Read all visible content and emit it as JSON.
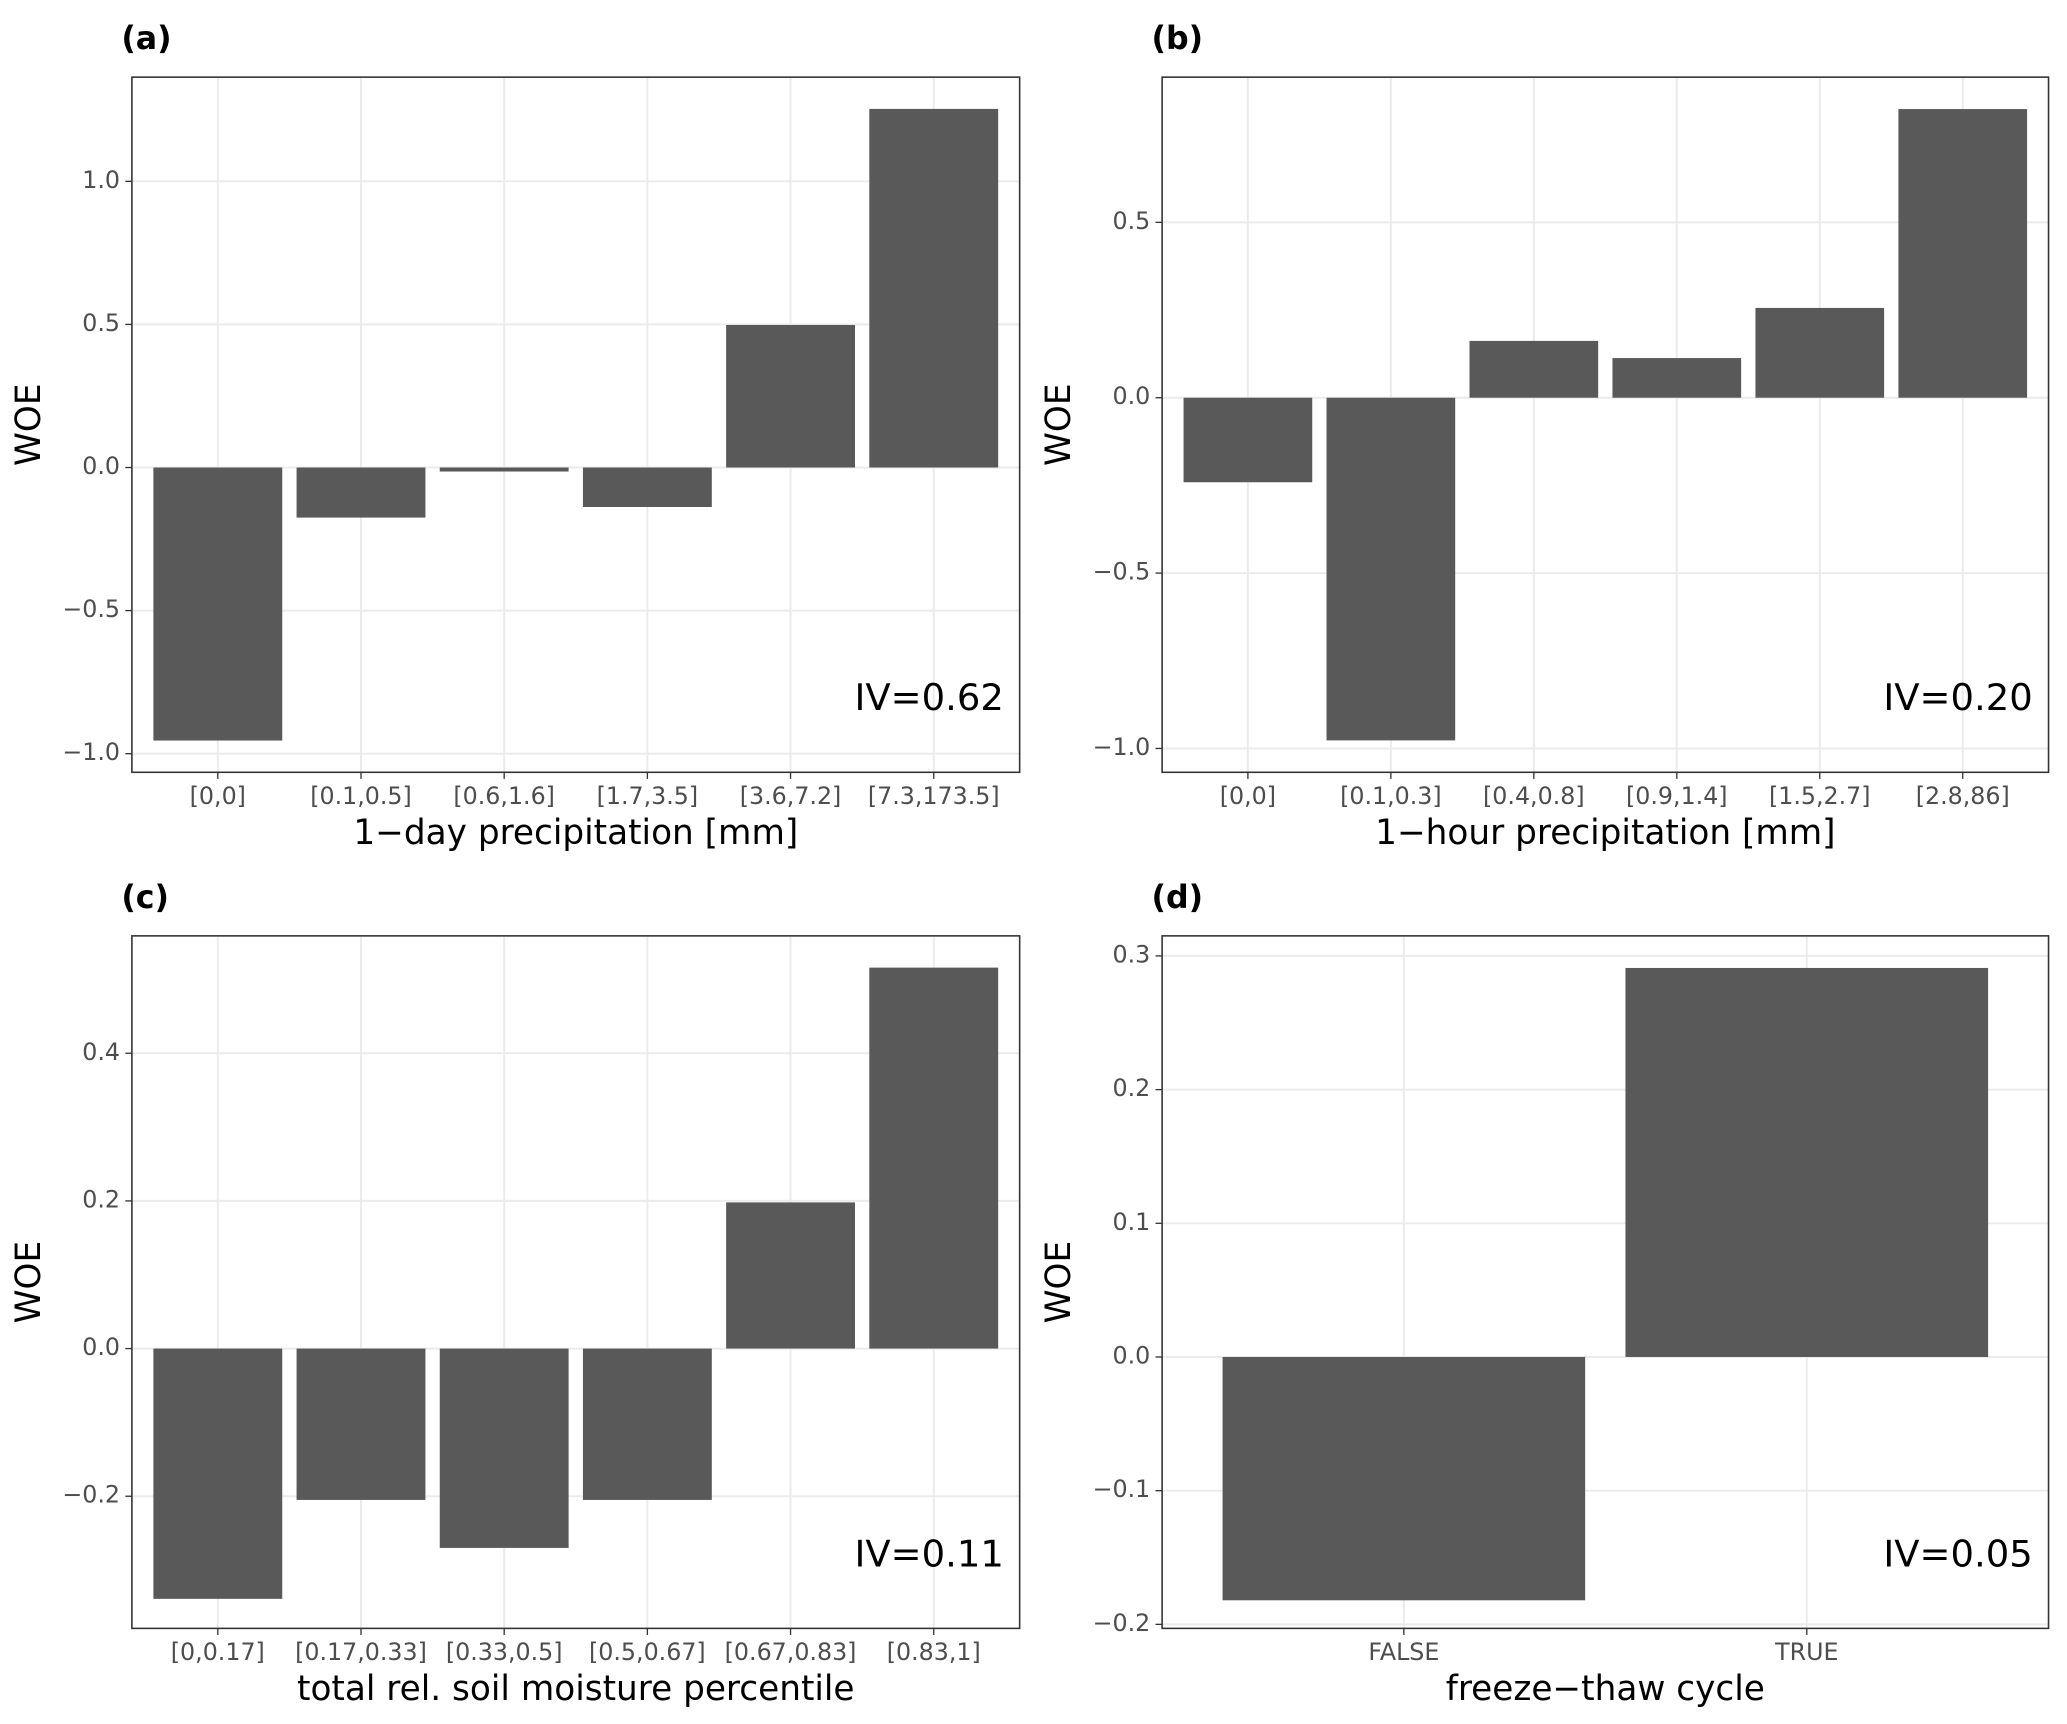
{
  "chart_data": [
    {
      "type": "bar",
      "panel_label": "(a)",
      "xlabel": "1−day precipitation [mm]",
      "ylabel": "WOE",
      "annotation": "IV=0.62",
      "categories": [
        "[0,0]",
        "[0.1,0.5]",
        "[0.6,1.6]",
        "[1.7,3.5]",
        "[3.6,7.2]",
        "[7.3,173.5]"
      ],
      "values": [
        -0.954,
        -0.175,
        -0.014,
        -0.138,
        0.498,
        1.253
      ],
      "color": "#595959",
      "ylim": [
        -1.065,
        1.364
      ],
      "yticks": [
        {
          "value": -1.0,
          "label": "−1.0"
        },
        {
          "value": -0.5,
          "label": "−0.5"
        },
        {
          "value": 0,
          "label": "0.0"
        },
        0.5,
        {
          "value": 1.0,
          "label": "1.0"
        }
      ],
      "grid": true
    },
    {
      "type": "bar",
      "panel_label": "(b)",
      "xlabel": "1−hour precipitation [mm]",
      "ylabel": "WOE",
      "annotation": "IV=0.20",
      "categories": [
        "[0,0]",
        "[0.1,0.3]",
        "[0.4,0.8]",
        "[0.9,1.4]",
        "[1.5,2.7]",
        "[2.8,86]"
      ],
      "values": [
        -0.241,
        -0.977,
        0.162,
        0.113,
        0.256,
        0.823
      ],
      "color": "#595959",
      "ylim": [
        -1.068,
        0.914
      ],
      "yticks": [
        {
          "value": -1.0,
          "label": "−1.0"
        },
        {
          "value": -0.5,
          "label": "−0.5"
        },
        {
          "value": 0,
          "label": "0.0"
        },
        0.5
      ],
      "grid": true
    },
    {
      "type": "bar",
      "panel_label": "(c)",
      "xlabel": "total rel. soil moisture percentile",
      "ylabel": "WOE",
      "annotation": "IV=0.11",
      "categories": [
        "[0,0.17]",
        "[0.17,0.33]",
        "[0.33,0.5]",
        "[0.5,0.67]",
        "[0.67,0.83]",
        "[0.83,1]"
      ],
      "values": [
        -0.339,
        -0.205,
        -0.27,
        -0.205,
        0.198,
        0.516
      ],
      "color": "#595959",
      "ylim": [
        -0.379,
        0.559
      ],
      "yticks": [
        {
          "value": -0.2,
          "label": "−0.2"
        },
        {
          "value": 0,
          "label": "0.0"
        },
        0.2,
        0.4
      ],
      "grid": true
    },
    {
      "type": "bar",
      "panel_label": "(d)",
      "xlabel": "freeze−thaw cycle",
      "ylabel": "WOE",
      "annotation": "IV=0.05",
      "categories": [
        "FALSE",
        "TRUE"
      ],
      "values": [
        -0.182,
        0.291
      ],
      "color": "#595959",
      "ylim": [
        -0.203,
        0.315
      ],
      "yticks": [
        {
          "value": -0.2,
          "label": "−0.2"
        },
        {
          "value": -0.1,
          "label": "−0.1"
        },
        {
          "value": 0,
          "label": "0.0"
        },
        0.1,
        0.2,
        0.3
      ],
      "grid": true
    }
  ]
}
